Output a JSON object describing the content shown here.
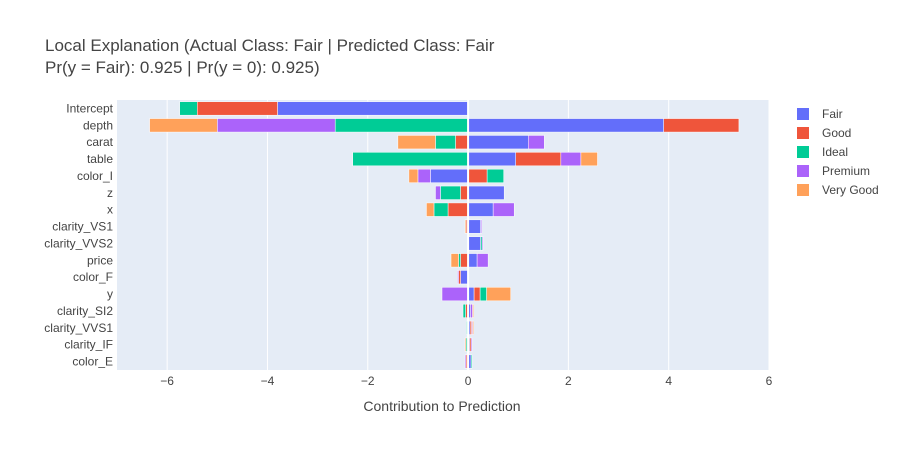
{
  "chart_data": {
    "type": "bar",
    "orientation": "horizontal",
    "barmode": "relative",
    "title_line1": "Local Explanation (Actual Class: Fair | Predicted Class: Fair",
    "title_line2": "Pr(y = Fair): 0.925 | Pr(y = 0): 0.925)",
    "xlabel": "Contribution to Prediction",
    "ylabel": "",
    "xlim": [
      -7,
      6
    ],
    "xticks": [
      -6,
      -4,
      -2,
      0,
      2,
      4,
      6
    ],
    "xtick_labels": [
      "−6",
      "−4",
      "−2",
      "0",
      "2",
      "4",
      "6"
    ],
    "grid": true,
    "legend_position": "right",
    "categories": [
      "Intercept",
      "depth",
      "carat",
      "table",
      "color_I",
      "z",
      "x",
      "clarity_VS1",
      "clarity_VVS2",
      "price",
      "color_F",
      "y",
      "clarity_SI2",
      "clarity_VVS1",
      "clarity_IF",
      "color_E"
    ],
    "series": [
      {
        "name": "Fair",
        "color": "#636efa",
        "values": [
          -3.8,
          3.9,
          1.2,
          0.95,
          -0.75,
          0.72,
          0.5,
          0.25,
          0.25,
          0.18,
          -0.15,
          0.12,
          0.05,
          0.04,
          0.03,
          0.06
        ]
      },
      {
        "name": "Good",
        "color": "#ef553b",
        "values": [
          -1.6,
          1.5,
          -0.25,
          0.9,
          0.38,
          -0.15,
          -0.4,
          -0.04,
          0.0,
          -0.15,
          -0.04,
          0.12,
          -0.05,
          0.03,
          0.03,
          -0.04
        ]
      },
      {
        "name": "Ideal",
        "color": "#00cc96",
        "values": [
          -0.35,
          -2.65,
          -0.4,
          -2.3,
          0.33,
          -0.4,
          -0.28,
          0.0,
          0.03,
          -0.04,
          0.0,
          0.13,
          -0.05,
          -0.03,
          -0.04,
          0.02
        ]
      },
      {
        "name": "Premium",
        "color": "#ab63fa",
        "values": [
          0.0,
          -2.35,
          0.32,
          0.4,
          -0.25,
          -0.1,
          0.42,
          0.02,
          0.02,
          0.22,
          -0.02,
          -0.52,
          0.04,
          0.02,
          0.02,
          -0.02
        ]
      },
      {
        "name": "Very Good",
        "color": "#ffa15a",
        "values": [
          0.0,
          -1.35,
          -0.75,
          0.33,
          -0.18,
          0.0,
          -0.15,
          -0.02,
          0.0,
          -0.15,
          0.0,
          0.48,
          0.02,
          0.02,
          -0.02,
          0.0
        ]
      }
    ]
  }
}
